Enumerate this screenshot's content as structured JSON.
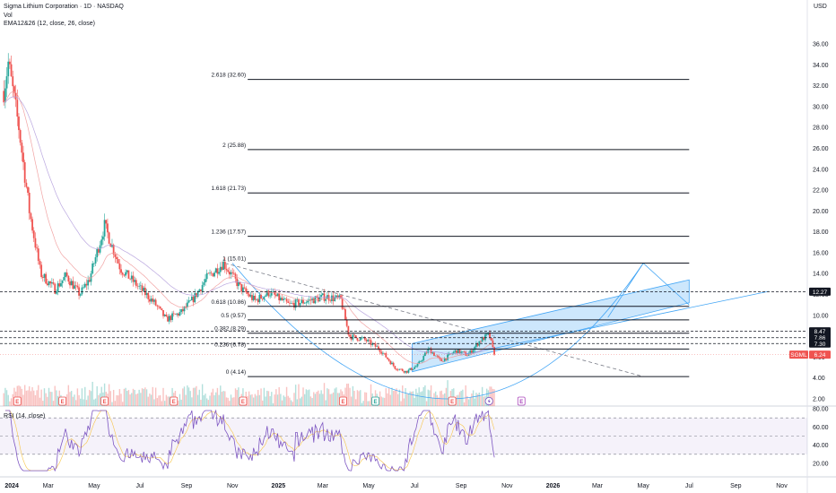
{
  "header": {
    "title": "Sigma Lithium Corporation · 1D · NASDAQ",
    "vol_label": "Vol",
    "ema_label": "EMA12&26 (12, close, 26, close)"
  },
  "rsi_header": "RSI (14, close)",
  "currency": "USD",
  "colors": {
    "up": "#26a69a",
    "down": "#ef5350",
    "channel_fill": "#90caf9",
    "channel_line": "#42a5f5",
    "rsi": "#7e57c2",
    "ema_fast": "#ef9a9a",
    "ema_slow": "#b39ddb",
    "price_badge": "#ef5350",
    "level_badge": "#131722"
  },
  "chart_data": {
    "type": "candlestick",
    "y_ticks": [
      2.0,
      4.0,
      6.0,
      8.0,
      10.0,
      12.0,
      14.0,
      16.0,
      18.0,
      20.0,
      22.0,
      24.0,
      26.0,
      28.0,
      30.0,
      32.0,
      34.0,
      36.0
    ],
    "x_ticks": [
      "2024",
      "Mar",
      "May",
      "Jul",
      "Sep",
      "Nov",
      "2025",
      "Mar",
      "May",
      "Jul",
      "Sep",
      "Nov",
      "2026",
      "Mar",
      "May",
      "Jul",
      "Sep",
      "Nov"
    ],
    "x_tick_dates": [
      "2024-01-01",
      "2024-03-01",
      "2024-05-01",
      "2024-07-01",
      "2024-09-01",
      "2024-11-01",
      "2025-01-01",
      "2025-03-01",
      "2025-05-01",
      "2025-07-01",
      "2025-09-01",
      "2025-11-01",
      "2026-01-01",
      "2026-03-01",
      "2026-05-01",
      "2026-07-01",
      "2026-09-01",
      "2026-11-01"
    ],
    "x_range": [
      "2023-12-28",
      "2026-12-05"
    ],
    "price_anchors": [
      {
        "date": "2024-01-02",
        "close": 31.5
      },
      {
        "date": "2024-01-08",
        "close": 34.2
      },
      {
        "date": "2024-01-22",
        "close": 28.0
      },
      {
        "date": "2024-02-05",
        "close": 20.0
      },
      {
        "date": "2024-02-20",
        "close": 14.0
      },
      {
        "date": "2024-03-10",
        "close": 12.5
      },
      {
        "date": "2024-03-25",
        "close": 13.8
      },
      {
        "date": "2024-04-12",
        "close": 12.0
      },
      {
        "date": "2024-04-25",
        "close": 13.5
      },
      {
        "date": "2024-05-15",
        "close": 18.6
      },
      {
        "date": "2024-06-05",
        "close": 14.5
      },
      {
        "date": "2024-07-01",
        "close": 12.6
      },
      {
        "date": "2024-07-20",
        "close": 11.2
      },
      {
        "date": "2024-08-05",
        "close": 9.6
      },
      {
        "date": "2024-08-25",
        "close": 10.3
      },
      {
        "date": "2024-09-10",
        "close": 11.6
      },
      {
        "date": "2024-09-28",
        "close": 13.6
      },
      {
        "date": "2024-10-20",
        "close": 15.0
      },
      {
        "date": "2024-11-12",
        "close": 12.6
      },
      {
        "date": "2024-12-01",
        "close": 11.4
      },
      {
        "date": "2024-12-20",
        "close": 12.2
      },
      {
        "date": "2025-01-15",
        "close": 11.0
      },
      {
        "date": "2025-02-10",
        "close": 11.4
      },
      {
        "date": "2025-03-05",
        "close": 11.8
      },
      {
        "date": "2025-03-25",
        "close": 11.5
      },
      {
        "date": "2025-04-05",
        "close": 8.0
      },
      {
        "date": "2025-04-25",
        "close": 7.7
      },
      {
        "date": "2025-05-15",
        "close": 6.8
      },
      {
        "date": "2025-06-05",
        "close": 5.0
      },
      {
        "date": "2025-06-20",
        "close": 4.6
      },
      {
        "date": "2025-07-05",
        "close": 5.2
      },
      {
        "date": "2025-07-20",
        "close": 6.8
      },
      {
        "date": "2025-08-05",
        "close": 5.6
      },
      {
        "date": "2025-08-25",
        "close": 6.6
      },
      {
        "date": "2025-09-10",
        "close": 6.2
      },
      {
        "date": "2025-09-25",
        "close": 7.5
      },
      {
        "date": "2025-10-08",
        "close": 8.2
      },
      {
        "date": "2025-10-15",
        "close": 6.24
      }
    ],
    "fib_levels": [
      {
        "label": "0 (4.14)",
        "value": 4.14
      },
      {
        "label": "0.236 (6.78)",
        "value": 6.78
      },
      {
        "label": "0.382 (8.29)",
        "value": 8.29
      },
      {
        "label": "0.5 (9.57)",
        "value": 9.57
      },
      {
        "label": "0.618 (10.86)",
        "value": 10.86
      },
      {
        "label": "1 (15.01)",
        "value": 15.01
      },
      {
        "label": "1.236 (17.57)",
        "value": 17.57
      },
      {
        "label": "1.618 (21.73)",
        "value": 21.73
      },
      {
        "label": "2 (25.88)",
        "value": 25.88
      },
      {
        "label": "2.618 (32.60)",
        "value": 32.6
      }
    ],
    "fib_range": [
      "2024-09-25",
      "2026-07-01"
    ],
    "horizontal_levels": [
      12.27,
      8.47,
      7.86,
      7.3
    ],
    "current_price": {
      "symbol": "SGML",
      "value": 6.24
    },
    "axis_badges": [
      "12.27",
      "8.47",
      "7.86",
      "7.30"
    ],
    "price_badge_value": "6.24",
    "price_badge_symbol": "SGML",
    "trendline": {
      "from": [
        "2024-10-22",
        15.0
      ],
      "to": [
        "2026-05-01",
        4.14
      ]
    },
    "channel": {
      "lower": [
        [
          "2025-06-28",
          4.6
        ],
        [
          "2026-07-01",
          11.2
        ]
      ],
      "upper": [
        [
          "2025-06-28",
          7.3
        ],
        [
          "2026-07-01",
          13.4
        ]
      ],
      "extended_lower": [
        [
          "2025-09-01",
          6.2
        ],
        [
          "2026-10-15",
          12.3
        ]
      ]
    },
    "arc": {
      "left": [
        "2024-11-01",
        15.0
      ],
      "bottom": [
        "2025-08-15",
        2.0
      ],
      "right": [
        "2026-05-01",
        15.0
      ]
    },
    "zigzag": [
      [
        "2026-03-15",
        9.8
      ],
      [
        "2026-05-01",
        15.0
      ],
      [
        "2026-07-01",
        11.0
      ]
    ],
    "event_markers": [
      {
        "date": "2024-01-20",
        "letter": "E"
      },
      {
        "date": "2024-03-20",
        "letter": "E"
      },
      {
        "date": "2024-05-15",
        "letter": "E"
      },
      {
        "date": "2024-08-15",
        "letter": "E"
      },
      {
        "date": "2024-11-15",
        "letter": "E"
      },
      {
        "date": "2025-03-28",
        "letter": "E"
      },
      {
        "date": "2025-05-10",
        "letter": "E"
      },
      {
        "date": "2025-08-20",
        "letter": "E"
      },
      {
        "date": "2025-11-20",
        "letter": "E"
      }
    ],
    "dividend_marker": {
      "date": "2025-10-08"
    },
    "rsi": {
      "y_ticks": [
        20.0,
        40.0,
        60.0,
        80.0
      ],
      "overbought": 70,
      "oversold": 30
    }
  }
}
